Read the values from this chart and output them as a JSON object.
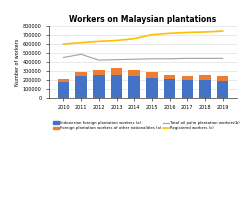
{
  "title": "Workers on Malaysian plantations",
  "years": [
    2010,
    2011,
    2012,
    2013,
    2014,
    2015,
    2016,
    2017,
    2018,
    2019
  ],
  "indonesian_workers": [
    170000,
    240000,
    255000,
    250000,
    240000,
    225000,
    210000,
    200000,
    200000,
    190000
  ],
  "other_foreign_workers": [
    35000,
    50000,
    55000,
    80000,
    70000,
    65000,
    45000,
    45000,
    55000,
    55000
  ],
  "total_palm_workers": [
    450000,
    485000,
    420000,
    425000,
    430000,
    435000,
    435000,
    440000,
    440000,
    440000
  ],
  "registered_workers": [
    600000,
    615000,
    630000,
    640000,
    660000,
    705000,
    720000,
    730000,
    735000,
    745000
  ],
  "ylim": [
    0,
    800000
  ],
  "yticks": [
    0,
    100000,
    200000,
    300000,
    400000,
    500000,
    600000,
    700000,
    800000
  ],
  "bar_color_indonesian": "#4472C4",
  "bar_color_other": "#ED7D31",
  "line_color_total": "#A0A0A0",
  "line_color_registered": "#FFC000",
  "ylabel": "Number of workers",
  "legend_labels": [
    "Indonesian foreign plantation workers (a)",
    "Foreign plantation workers of other nationalities (a)",
    "Total oil palm plantation workers(b)",
    "Registered workers (c)"
  ],
  "background_color": "#FFFFFF",
  "grid_color": "#D8D8D8",
  "title_fontsize": 5.5,
  "tick_fontsize": 3.5,
  "ylabel_fontsize": 3.5,
  "legend_fontsize": 2.8
}
